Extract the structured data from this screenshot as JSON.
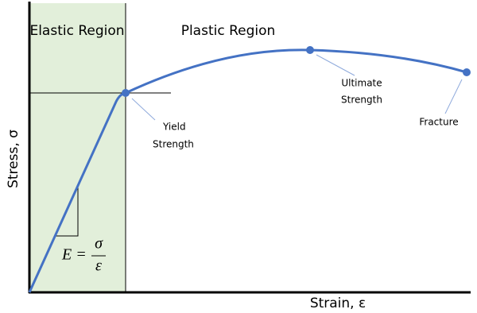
{
  "regions": {
    "elastic": "Elastic Region",
    "plastic": "Plastic Region"
  },
  "axes": {
    "y": "Stress, σ",
    "x": "Strain, ε"
  },
  "points": {
    "yield": [
      "Yield",
      "Strength"
    ],
    "ultimate": [
      "Ultimate",
      "Strength"
    ],
    "fracture": [
      "Fracture"
    ]
  },
  "formula": {
    "lhs": "E =",
    "numerator": "σ",
    "denominator": "ε"
  }
}
